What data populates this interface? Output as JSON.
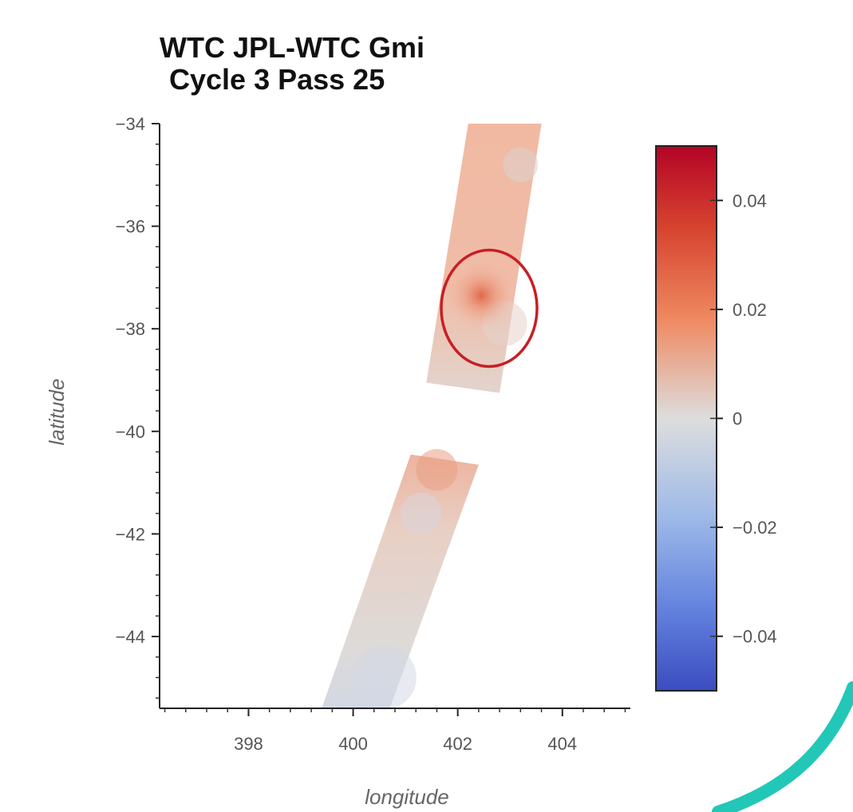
{
  "chart_data": {
    "type": "heatmap",
    "title_line1": "WTC JPL-WTC Gmi",
    "title_line2": "Cycle 3 Pass 25",
    "xlabel": "longitude",
    "ylabel": "latitude",
    "xlim": [
      396.3,
      405.3
    ],
    "ylim": [
      -45.4,
      -34
    ],
    "x_ticks": [
      398,
      400,
      402,
      404
    ],
    "y_ticks": [
      -34,
      -36,
      -38,
      -40,
      -42,
      -44
    ],
    "x_tick_labels": [
      "398",
      "400",
      "402",
      "404"
    ],
    "y_tick_labels": [
      "−34",
      "−36",
      "−38",
      "−40",
      "−42",
      "−44"
    ],
    "colorbar": {
      "colormap": "coolwarm",
      "range": [
        -0.05,
        0.05
      ],
      "ticks": [
        0.04,
        0.02,
        0,
        -0.02,
        -0.04
      ],
      "tick_labels": [
        "0.04",
        "0.02",
        "0",
        "−0.02",
        "−0.04"
      ],
      "colors": {
        "max": "#c0182a",
        "high": "#e8876a",
        "mid": "#dcdcdc",
        "low": "#9bb8e8",
        "min": "#3b4cc0"
      }
    },
    "swath_segments": [
      {
        "corners": [
          [
            402.2,
            -34
          ],
          [
            403.6,
            -34
          ],
          [
            402.8,
            -39.25
          ],
          [
            401.4,
            -39.05
          ]
        ],
        "mean_value": 0.008
      },
      {
        "corners": [
          [
            401.1,
            -40.45
          ],
          [
            402.4,
            -40.65
          ],
          [
            400.7,
            -45.4
          ],
          [
            399.4,
            -45.4
          ]
        ],
        "mean_value": 0.002
      }
    ],
    "annotation": {
      "type": "circle",
      "center": [
        402.6,
        -37.6
      ],
      "color": "#c81e24"
    }
  },
  "decor": {
    "arc_color": "#22c7b7"
  }
}
